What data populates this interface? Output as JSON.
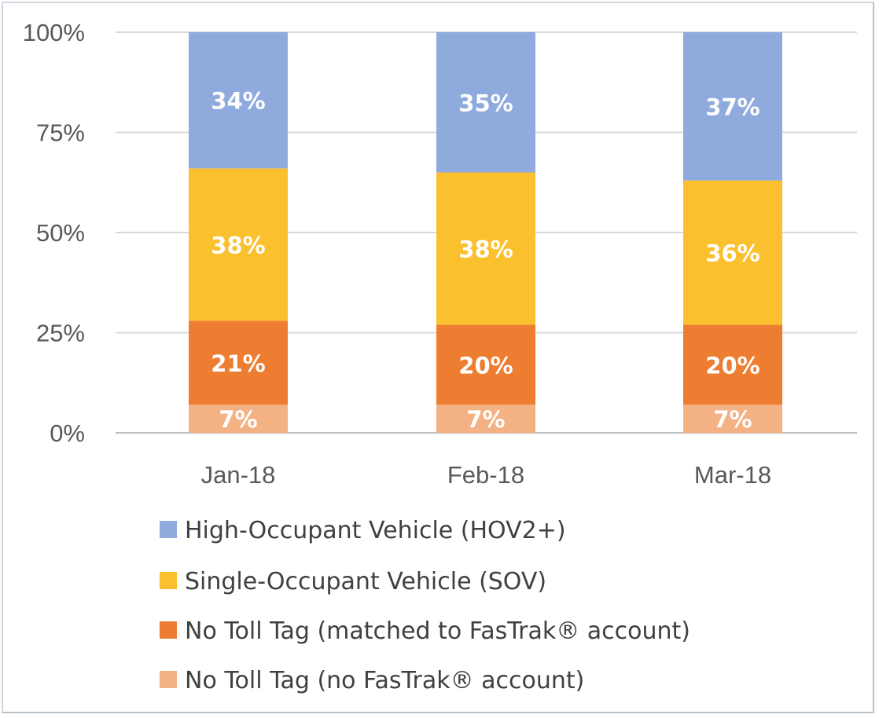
{
  "chart_data": {
    "type": "bar",
    "stacked": true,
    "percent_stacked": true,
    "categories": [
      "Jan-18",
      "Feb-18",
      "Mar-18"
    ],
    "y_ticks": [
      "0%",
      "25%",
      "50%",
      "75%",
      "100%"
    ],
    "ylim": [
      0,
      100
    ],
    "grid": true,
    "legend_position": "bottom",
    "series": [
      {
        "name": "No Toll Tag (no FasTrak® account)",
        "color": "#f4b183",
        "values": [
          7,
          7,
          7
        ],
        "labels": [
          "7%",
          "7%",
          "7%"
        ]
      },
      {
        "name": "No Toll Tag (matched to FasTrak® account)",
        "color": "#ed7d31",
        "values": [
          21,
          20,
          20
        ],
        "labels": [
          "21%",
          "20%",
          "20%"
        ]
      },
      {
        "name": "Single-Occupant Vehicle (SOV)",
        "color": "#fbc02d",
        "values": [
          38,
          38,
          36
        ],
        "labels": [
          "38%",
          "38%",
          "36%"
        ]
      },
      {
        "name": "High-Occupant Vehicle (HOV2+)",
        "color": "#8faadc",
        "values": [
          34,
          35,
          37
        ],
        "labels": [
          "34%",
          "35%",
          "37%"
        ]
      }
    ],
    "legend_order": [
      3,
      2,
      1,
      0
    ]
  }
}
